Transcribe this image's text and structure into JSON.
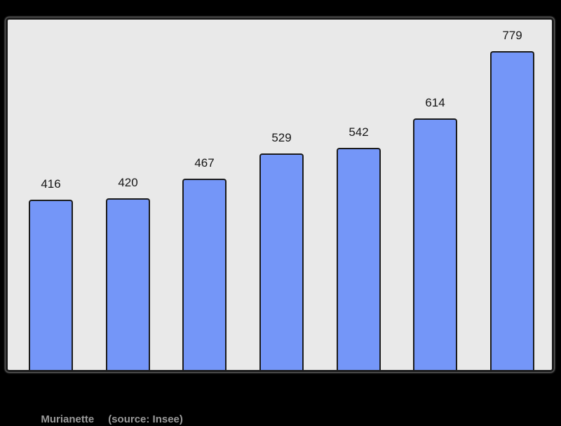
{
  "page": {
    "background": "#000000"
  },
  "caption": {
    "place_label": "Murianette",
    "source_label": "(source: Insee)",
    "text_color": "#9a9a9a"
  },
  "chart_data": {
    "type": "bar",
    "title": "",
    "xlabel": "",
    "ylabel": "",
    "values": [
      416,
      420,
      467,
      529,
      542,
      614,
      779
    ],
    "bar_value_labels": [
      "416",
      "420",
      "467",
      "529",
      "542",
      "614",
      "779"
    ],
    "data_labels_shown": true,
    "axis_tick_labels_visible": false,
    "grid": false,
    "legend": "none",
    "ylim": [
      0,
      856
    ],
    "plot_background": "#e9e9e9",
    "bar_fill_color": "#7496f8",
    "bar_border_color": "#1b1b1b",
    "frame_border_color": "#1c1c1c"
  }
}
